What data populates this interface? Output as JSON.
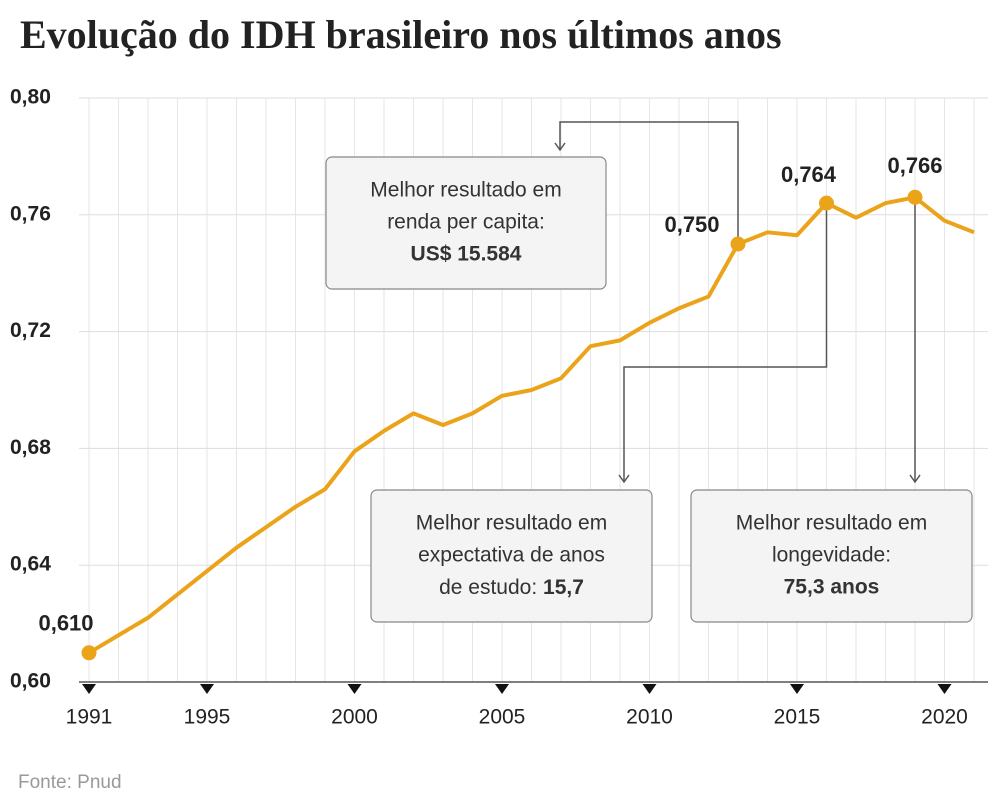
{
  "chart_data": {
    "type": "line",
    "title": "Evolução do IDH brasileiro nos últimos anos",
    "source": "Fonte: Pnud",
    "x": [
      1991,
      1992,
      1993,
      1994,
      1995,
      1996,
      1997,
      1998,
      1999,
      2000,
      2001,
      2002,
      2003,
      2004,
      2005,
      2006,
      2007,
      2008,
      2009,
      2010,
      2011,
      2012,
      2013,
      2014,
      2015,
      2016,
      2017,
      2018,
      2019,
      2020,
      2021
    ],
    "series": [
      {
        "color": "#eba31a",
        "values": [
          0.61,
          0.616,
          0.622,
          0.63,
          0.638,
          0.646,
          0.653,
          0.66,
          0.666,
          0.679,
          0.686,
          0.692,
          0.688,
          0.692,
          0.698,
          0.7,
          0.704,
          0.715,
          0.717,
          0.723,
          0.728,
          0.732,
          0.75,
          0.754,
          0.753,
          0.764,
          0.759,
          0.764,
          0.766,
          0.758,
          0.754
        ],
        "value_labels": [
          "0,610",
          null,
          null,
          null,
          null,
          null,
          null,
          null,
          null,
          null,
          null,
          null,
          null,
          null,
          null,
          null,
          null,
          null,
          null,
          null,
          null,
          null,
          "0,750",
          null,
          null,
          "0,764",
          null,
          null,
          "0,766",
          null,
          null
        ]
      }
    ],
    "xlim": [
      1991,
      2021
    ],
    "xticks": [
      1991,
      1995,
      2000,
      2005,
      2010,
      2015,
      2020
    ],
    "ylim": [
      0.6,
      0.8
    ],
    "yticks": [
      {
        "value": 0.6,
        "label": "0,60"
      },
      {
        "value": 0.64,
        "label": "0,64"
      },
      {
        "value": 0.68,
        "label": "0,68"
      },
      {
        "value": 0.72,
        "label": "0,72"
      },
      {
        "value": 0.76,
        "label": "0,76"
      },
      {
        "value": 0.8,
        "label": "0,80"
      }
    ],
    "grid": true,
    "annotations": [
      {
        "lines": [
          "Melhor resultado em",
          "renda per capita:"
        ],
        "highlight": "US$ 15.584"
      },
      {
        "lines": [
          "Melhor resultado em",
          "expectativa de anos",
          "de estudo:"
        ],
        "highlight": "15,7"
      },
      {
        "lines": [
          "Melhor resultado em",
          "longevidade:"
        ],
        "highlight": "75,3 anos"
      }
    ]
  }
}
